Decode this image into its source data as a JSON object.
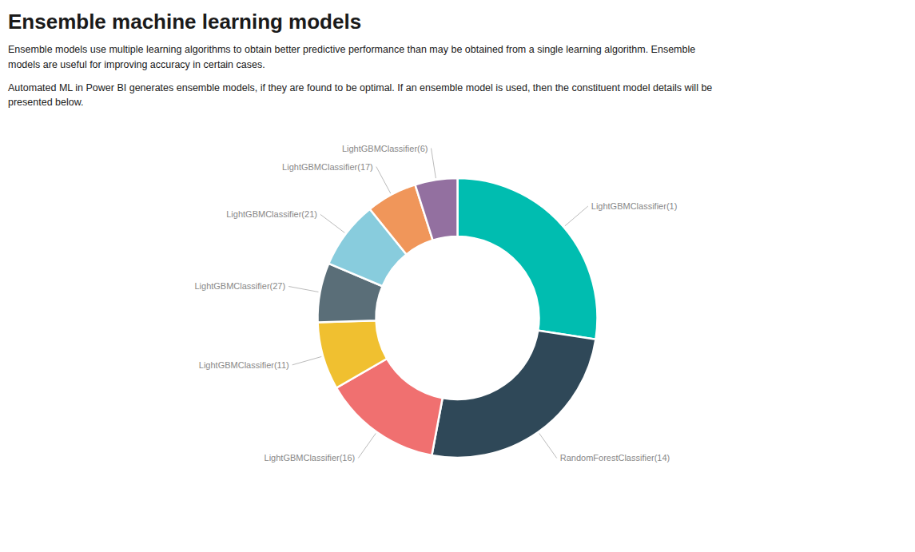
{
  "chart_data": {
    "type": "donut",
    "title": "Ensemble machine learning models",
    "subtitle": [
      "Ensemble models use multiple learning algorithms to obtain better predictive performance than may be obtained from a single learning algorithm. Ensemble\nmodels are useful for improving accuracy in certain cases.",
      "Automated ML in Power BI generates ensemble models, if they are found to be optimal. If an ensemble model is used, then the constituent model details will be\npresented below."
    ],
    "categories": [
      "LightGBMClassifier(1)",
      "RandomForestClassifier(14)",
      "LightGBMClassifier(16)",
      "LightGBMClassifier(11)",
      "LightGBMClassifier(27)",
      "LightGBMClassifier(21)",
      "LightGBMClassifier(17)",
      "LightGBMClassifier(6)"
    ],
    "values": [
      28,
      26,
      14,
      8,
      7,
      8,
      6,
      5
    ],
    "colors": [
      "#00BDB0",
      "#2F4858",
      "#F07070",
      "#F0C030",
      "#5A6E78",
      "#88CCDD",
      "#F0965A",
      "#9370A0"
    ]
  }
}
